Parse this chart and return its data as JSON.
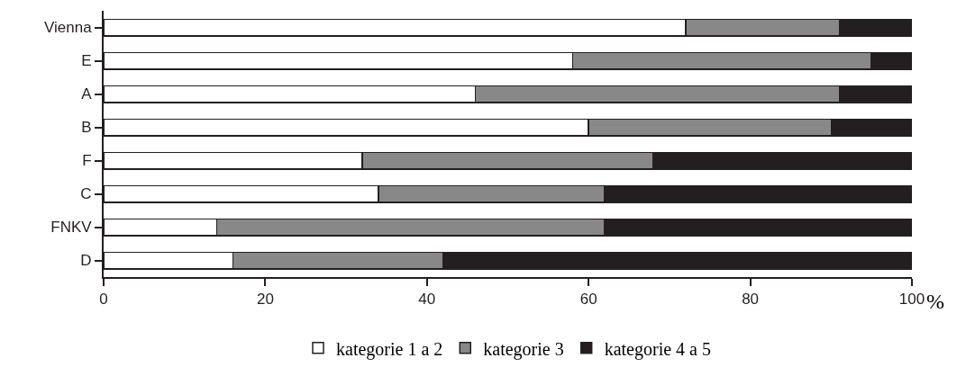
{
  "chart_data": {
    "type": "bar",
    "orientation": "horizontal",
    "stacked": true,
    "xlabel": "%",
    "categories": [
      "Vienna",
      "E",
      "A",
      "B",
      "F",
      "C",
      "FNKV",
      "D"
    ],
    "series": [
      {
        "name": "kategorie 1 a 2",
        "color": "#ffffff",
        "values": [
          72,
          58,
          46,
          60,
          32,
          34,
          14,
          16
        ]
      },
      {
        "name": "kategorie 3",
        "color": "#888888",
        "values": [
          19,
          37,
          45,
          30,
          36,
          28,
          48,
          26
        ]
      },
      {
        "name": "kategorie 4 a 5",
        "color": "#231f20",
        "values": [
          9,
          5,
          9,
          10,
          32,
          38,
          38,
          58
        ]
      }
    ],
    "xlim": [
      0,
      100
    ],
    "xticks": [
      0,
      20,
      40,
      60,
      80,
      100
    ],
    "grid": false,
    "legend": "bottom"
  }
}
